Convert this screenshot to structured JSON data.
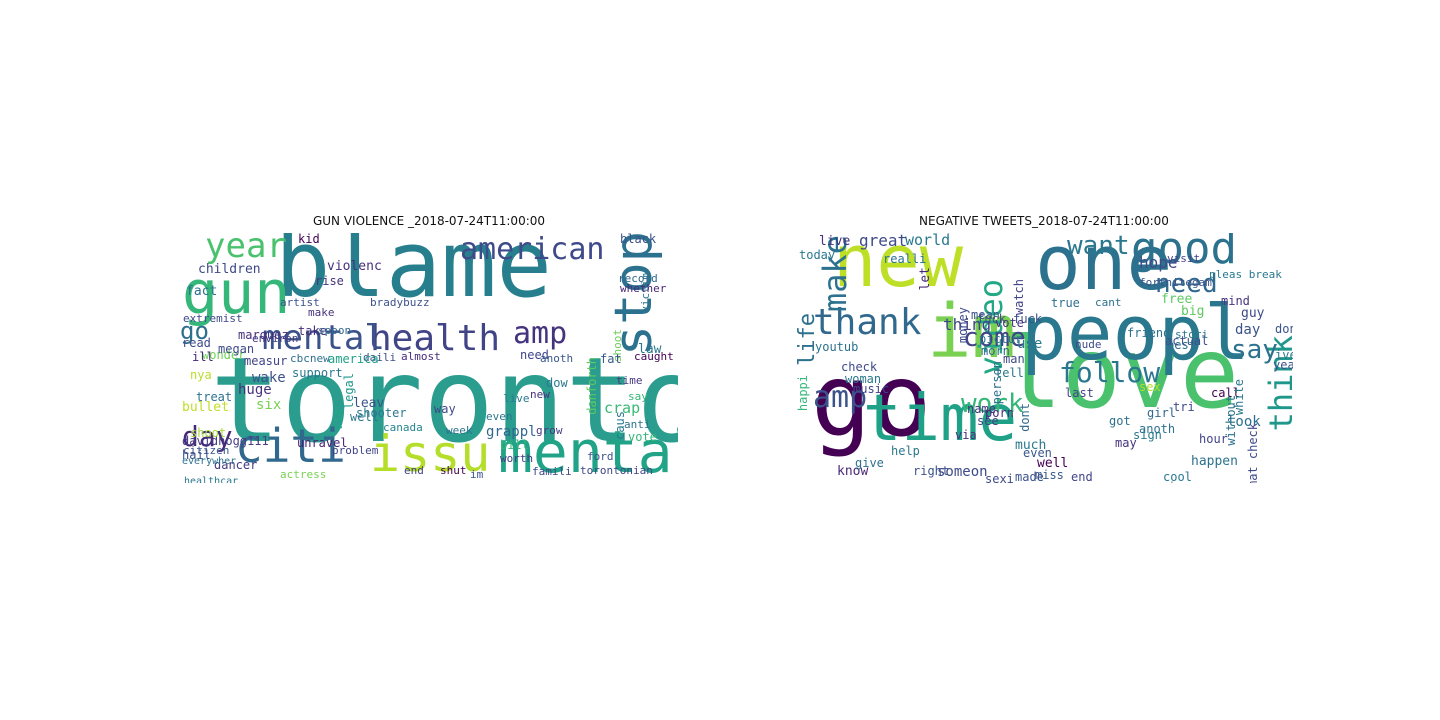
{
  "panels": [
    {
      "title": "GUN VIOLENCE _2018-07-24T11:00:00",
      "words": [
        {
          "text": "toronto",
          "color": "#2a9d8f"
        },
        {
          "text": "blame",
          "color": "#277f8e"
        },
        {
          "text": "gun",
          "color": "#35b779"
        },
        {
          "text": "mental",
          "color": "#20a386"
        },
        {
          "text": "stop",
          "color": "#2c728e"
        },
        {
          "text": "health",
          "color": "#414487"
        },
        {
          "text": "mental",
          "color": "#3b528b"
        },
        {
          "text": "issu",
          "color": "#b5de2b"
        },
        {
          "text": "citi",
          "color": "#31688e"
        },
        {
          "text": "american",
          "color": "#3e4a89"
        },
        {
          "text": "year",
          "color": "#4ac16d"
        },
        {
          "text": "amp",
          "color": "#46337e"
        },
        {
          "text": "day",
          "color": "#482878"
        },
        {
          "text": "go",
          "color": "#2d708e"
        },
        {
          "text": "grappl",
          "color": "#31688e"
        },
        {
          "text": "canada",
          "color": "#25858e"
        },
        {
          "text": "children",
          "color": "#3e4989"
        },
        {
          "text": "violenc",
          "color": "#472f7d"
        },
        {
          "text": "fact",
          "color": "#2d708e"
        },
        {
          "text": "rise",
          "color": "#46337e"
        },
        {
          "text": "support",
          "color": "#2a788e"
        },
        {
          "text": "bullet",
          "color": "#bddf26"
        },
        {
          "text": "davidhogg111",
          "color": "#433e85"
        },
        {
          "text": "unravel",
          "color": "#482173"
        },
        {
          "text": "famili",
          "color": "#3e4a89"
        },
        {
          "text": "shut",
          "color": "#440154"
        },
        {
          "text": "torontonian",
          "color": "#3f4788"
        },
        {
          "text": "end",
          "color": "#414487"
        },
        {
          "text": "week",
          "color": "#2c728e"
        },
        {
          "text": "grow",
          "color": "#443983"
        },
        {
          "text": "danforth",
          "color": "#5ec962"
        },
        {
          "text": "shoot",
          "color": "#6ccd5a"
        },
        {
          "text": "law",
          "color": "#2a788e"
        },
        {
          "text": "fat",
          "color": "#38588c"
        },
        {
          "text": "black",
          "color": "#3b528b"
        },
        {
          "text": "record",
          "color": "#31688e"
        },
        {
          "text": "victim",
          "color": "#2c728e"
        },
        {
          "text": "whether",
          "color": "#482878"
        },
        {
          "text": "crap",
          "color": "#38b977"
        },
        {
          "text": "time",
          "color": "#453781"
        },
        {
          "text": "caught",
          "color": "#440154"
        },
        {
          "text": "say",
          "color": "#35b779"
        },
        {
          "text": "bill",
          "color": "#35b779"
        },
        {
          "text": "ford",
          "color": "#3b528b"
        },
        {
          "text": "worth",
          "color": "#443983"
        },
        {
          "text": "even",
          "color": "#2a788e"
        },
        {
          "text": "live",
          "color": "#2a788e"
        },
        {
          "text": "need",
          "color": "#404688"
        },
        {
          "text": "almost",
          "color": "#472c7a"
        },
        {
          "text": "daili",
          "color": "#3b528b"
        },
        {
          "text": "america",
          "color": "#1fa187"
        },
        {
          "text": "cbcnew",
          "color": "#2d708e"
        },
        {
          "text": "measur",
          "color": "#414487"
        },
        {
          "text": "wonder",
          "color": "#6ece58"
        },
        {
          "text": "nya",
          "color": "#b8de29"
        },
        {
          "text": "treat",
          "color": "#2c728e"
        },
        {
          "text": "wake",
          "color": "#3b528b"
        },
        {
          "text": "huge",
          "color": "#46337e"
        },
        {
          "text": "six",
          "color": "#7ad151"
        },
        {
          "text": "leav",
          "color": "#3b528b"
        },
        {
          "text": "well",
          "color": "#2a788e"
        },
        {
          "text": "way",
          "color": "#3e4a89"
        },
        {
          "text": "new",
          "color": "#46327e"
        },
        {
          "text": "anoth",
          "color": "#38588c"
        },
        {
          "text": "make",
          "color": "#46337e"
        },
        {
          "text": "take",
          "color": "#472d7b"
        },
        {
          "text": "kid",
          "color": "#440154"
        },
        {
          "text": "artist",
          "color": "#3b528b"
        },
        {
          "text": "read",
          "color": "#3e4a89"
        },
        {
          "text": "ill",
          "color": "#482878"
        },
        {
          "text": "megan",
          "color": "#3e4989"
        },
        {
          "text": "marquez",
          "color": "#472f7d"
        },
        {
          "text": "environ",
          "color": "#433e85"
        },
        {
          "text": "legal",
          "color": "#1f988b"
        },
        {
          "text": "via",
          "color": "#22a884"
        },
        {
          "text": "shooter",
          "color": "#2a788e"
        },
        {
          "text": "dancer",
          "color": "#443983"
        },
        {
          "text": "hail",
          "color": "#3b528b"
        },
        {
          "text": "shoot",
          "color": "#a5db36"
        },
        {
          "text": "problem",
          "color": "#414487"
        },
        {
          "text": "actress",
          "color": "#7ad151"
        },
        {
          "text": "im",
          "color": "#3b528b"
        },
        {
          "text": "vote",
          "color": "#35b779"
        },
        {
          "text": "dow",
          "color": "#2a788e"
        },
        {
          "text": "caus",
          "color": "#2a788e"
        },
        {
          "text": "anti",
          "color": "#2c728e"
        },
        {
          "text": "bradybuzz",
          "color": "#3b528b"
        },
        {
          "text": "spoon",
          "color": "#31688e"
        },
        {
          "text": "extremist",
          "color": "#3e4a89"
        },
        {
          "text": "citizen",
          "color": "#3b528b"
        },
        {
          "text": "everywher",
          "color": "#2c728e"
        },
        {
          "text": "healthcar",
          "color": "#2a788e"
        }
      ]
    },
    {
      "title": "NEGATIVE TWEETS_2018-07-24T11:00:00",
      "words": [
        {
          "text": "love",
          "color": "#4ac16d"
        },
        {
          "text": "new",
          "color": "#bddf26"
        },
        {
          "text": "go",
          "color": "#440154"
        },
        {
          "text": "one",
          "color": "#2c728e"
        },
        {
          "text": "peopl",
          "color": "#2a788e"
        },
        {
          "text": "time",
          "color": "#1fa187"
        },
        {
          "text": "im",
          "color": "#7ad151"
        },
        {
          "text": "good",
          "color": "#2c728e"
        },
        {
          "text": "thank",
          "color": "#31688e"
        },
        {
          "text": "amp",
          "color": "#3b528b"
        },
        {
          "text": "make",
          "color": "#2c728e"
        },
        {
          "text": "video",
          "color": "#22a884"
        },
        {
          "text": "follow",
          "color": "#2a788e"
        },
        {
          "text": "want",
          "color": "#2a788e"
        },
        {
          "text": "need",
          "color": "#31688e"
        },
        {
          "text": "come",
          "color": "#414487"
        },
        {
          "text": "work",
          "color": "#35b779"
        },
        {
          "text": "think",
          "color": "#1f988b"
        },
        {
          "text": "say",
          "color": "#2c728e"
        },
        {
          "text": "life",
          "color": "#2c728e"
        },
        {
          "text": "world",
          "color": "#2a788e"
        },
        {
          "text": "hope",
          "color": "#3e4a89"
        },
        {
          "text": "thing",
          "color": "#414487"
        },
        {
          "text": "great",
          "color": "#3e4a89"
        },
        {
          "text": "live",
          "color": "#46337e"
        },
        {
          "text": "use",
          "color": "#2a788e"
        },
        {
          "text": "dont",
          "color": "#31688e"
        },
        {
          "text": "much",
          "color": "#2a788e"
        },
        {
          "text": "even",
          "color": "#38588c"
        },
        {
          "text": "call",
          "color": "#440154"
        },
        {
          "text": "day",
          "color": "#3b528b"
        },
        {
          "text": "guy",
          "color": "#3e4a89"
        },
        {
          "text": "look",
          "color": "#2d708e"
        },
        {
          "text": "happen",
          "color": "#2c728e"
        },
        {
          "text": "may",
          "color": "#46337e"
        },
        {
          "text": "help",
          "color": "#2a788e"
        },
        {
          "text": "someon",
          "color": "#3e4a89"
        },
        {
          "text": "know",
          "color": "#482878"
        },
        {
          "text": "right",
          "color": "#3b528b"
        },
        {
          "text": "give",
          "color": "#2c728e"
        },
        {
          "text": "today",
          "color": "#2a788e"
        },
        {
          "text": "fuck fuck",
          "color": "#3b528b"
        },
        {
          "text": "vote",
          "color": "#46337e"
        },
        {
          "text": "true",
          "color": "#2c728e"
        },
        {
          "text": "money",
          "color": "#3e4a89"
        },
        {
          "text": "watch",
          "color": "#414487"
        },
        {
          "text": "let",
          "color": "#482878"
        },
        {
          "text": "realli",
          "color": "#2c728e"
        },
        {
          "text": "via",
          "color": "#46337e"
        },
        {
          "text": "last",
          "color": "#414487"
        },
        {
          "text": "tell",
          "color": "#2a788e"
        },
        {
          "text": "miss",
          "color": "#38588c"
        },
        {
          "text": "well",
          "color": "#440154"
        },
        {
          "text": "sexi",
          "color": "#3e4a89"
        },
        {
          "text": "made",
          "color": "#3b528b"
        },
        {
          "text": "cool",
          "color": "#2a788e"
        },
        {
          "text": "best",
          "color": "#2c728e"
        },
        {
          "text": "year",
          "color": "#3b528b"
        },
        {
          "text": "girl",
          "color": "#31688e"
        },
        {
          "text": "anoth",
          "color": "#2c728e"
        },
        {
          "text": "sex",
          "color": "#b5de2b"
        },
        {
          "text": "big",
          "color": "#5ec962"
        },
        {
          "text": "free",
          "color": "#5ec962"
        },
        {
          "text": "mind",
          "color": "#46337e"
        },
        {
          "text": "white",
          "color": "#2a788e"
        },
        {
          "text": "tri",
          "color": "#3e4a89"
        },
        {
          "text": "actual",
          "color": "#3b528b"
        },
        {
          "text": "friend",
          "color": "#2c728e"
        },
        {
          "text": "sign",
          "color": "#2a788e"
        },
        {
          "text": "hour",
          "color": "#414487"
        },
        {
          "text": "check",
          "color": "#3e4a89"
        },
        {
          "text": "woman",
          "color": "#2a788e"
        },
        {
          "text": "morn",
          "color": "#31688e"
        },
        {
          "text": "person",
          "color": "#2c728e"
        },
        {
          "text": "music",
          "color": "#414487"
        },
        {
          "text": "happi",
          "color": "#35b779"
        },
        {
          "text": "youtub",
          "color": "#2c728e"
        },
        {
          "text": "name",
          "color": "#46337e"
        },
        {
          "text": "mean",
          "color": "#3b528b"
        },
        {
          "text": "pictur",
          "color": "#2a788e"
        },
        {
          "text": "man",
          "color": "#3e4a89"
        },
        {
          "text": "got",
          "color": "#2c728e"
        },
        {
          "text": "see",
          "color": "#414487"
        },
        {
          "text": "don",
          "color": "#3b528b"
        },
        {
          "text": "ive",
          "color": "#2a788e"
        },
        {
          "text": "view",
          "color": "#2a788e"
        },
        {
          "text": "end",
          "color": "#414487"
        },
        {
          "text": "porn",
          "color": "#482878"
        },
        {
          "text": "without",
          "color": "#2c728e"
        },
        {
          "text": "automat check",
          "color": "#3e4a89"
        },
        {
          "text": "pleas break",
          "color": "#2a788e"
        },
        {
          "text": "fortnitegam",
          "color": "#3b528b"
        },
        {
          "text": "visit",
          "color": "#414487"
        },
        {
          "text": "cant",
          "color": "#2c728e"
        },
        {
          "text": "nude",
          "color": "#3e4a89"
        },
        {
          "text": "stori",
          "color": "#2a788e"
        }
      ]
    }
  ]
}
